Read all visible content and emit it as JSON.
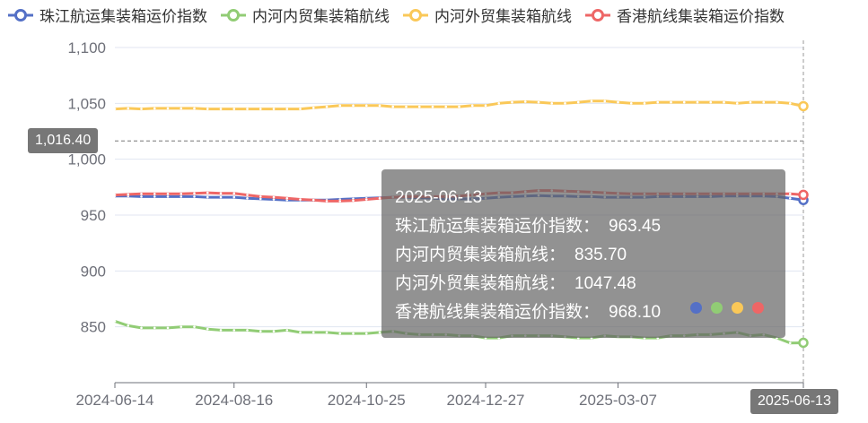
{
  "legend": [
    {
      "name": "珠江航运集装箱运价指数",
      "color": "#5470c6"
    },
    {
      "name": "内河内贸集装箱航线",
      "color": "#91cc75"
    },
    {
      "name": "内河外贸集装箱航线",
      "color": "#fac858"
    },
    {
      "name": "香港航线集装箱运价指数",
      "color": "#ee6666"
    }
  ],
  "axis_pointer": {
    "y_value": "1,016.40",
    "x_value": "2025-06-13"
  },
  "tooltip": {
    "date": "2025-06-13",
    "rows": [
      {
        "label": "珠江航运集装箱运价指数：",
        "value": "963.45"
      },
      {
        "label": "内河内贸集装箱航线：",
        "value": "835.70"
      },
      {
        "label": "内河外贸集装箱航线：",
        "value": "1047.48"
      },
      {
        "label": "香港航线集装箱运价指数：",
        "value": "968.10"
      }
    ]
  },
  "chart_data": {
    "type": "line",
    "x_ticks": [
      "2024-06-14",
      "2024-08-16",
      "2024-10-25",
      "2024-12-27",
      "2025-03-07",
      "2025-06-13"
    ],
    "y_ticks": [
      "850",
      "900",
      "950",
      "1,000",
      "1,050",
      "1,100"
    ],
    "ylim": [
      800,
      1100
    ],
    "x": [
      "2024-06-14",
      "2024-06-21",
      "2024-06-28",
      "2024-07-05",
      "2024-07-12",
      "2024-07-19",
      "2024-07-26",
      "2024-08-02",
      "2024-08-09",
      "2024-08-16",
      "2024-08-23",
      "2024-08-30",
      "2024-09-06",
      "2024-09-13",
      "2024-09-20",
      "2024-09-27",
      "2024-10-04",
      "2024-10-11",
      "2024-10-18",
      "2024-10-25",
      "2024-11-01",
      "2024-11-08",
      "2024-11-15",
      "2024-11-22",
      "2024-11-29",
      "2024-12-06",
      "2024-12-13",
      "2024-12-20",
      "2024-12-27",
      "2025-01-03",
      "2025-01-10",
      "2025-01-17",
      "2025-01-24",
      "2025-01-31",
      "2025-02-07",
      "2025-02-14",
      "2025-02-21",
      "2025-02-28",
      "2025-03-07",
      "2025-03-14",
      "2025-03-21",
      "2025-03-28",
      "2025-04-04",
      "2025-04-11",
      "2025-04-18",
      "2025-04-25",
      "2025-05-02",
      "2025-05-09",
      "2025-05-16",
      "2025-05-23",
      "2025-05-30",
      "2025-06-06",
      "2025-06-13"
    ],
    "series": [
      {
        "name": "珠江航运集装箱运价指数",
        "color": "#5470c6",
        "values": [
          967,
          967,
          966.5,
          966.5,
          966.5,
          966.5,
          966.5,
          966,
          966,
          966,
          965,
          964.5,
          964,
          963.5,
          963.5,
          963.5,
          963.5,
          964,
          964.5,
          965,
          965.5,
          966,
          966,
          965.5,
          965,
          964.5,
          964.5,
          964.5,
          965,
          966,
          966.5,
          967,
          967.5,
          967,
          967,
          966.5,
          966.5,
          966,
          966,
          966,
          966,
          966.5,
          966.5,
          966.5,
          966.5,
          966.5,
          967,
          967,
          967,
          967,
          966.5,
          965,
          963.45
        ]
      },
      {
        "name": "内河内贸集装箱航线",
        "color": "#91cc75",
        "values": [
          855,
          851,
          849,
          849,
          849,
          850,
          850,
          848,
          847,
          847,
          847,
          846,
          846,
          847,
          845,
          845,
          845,
          844,
          844,
          844,
          845,
          846,
          844,
          843,
          843,
          843,
          842,
          842,
          840,
          840,
          842,
          842,
          842,
          842,
          841,
          840,
          840,
          842,
          841,
          841,
          840,
          840,
          842,
          842,
          843,
          843,
          844,
          845,
          842,
          843,
          840,
          835.5,
          835.7
        ]
      },
      {
        "name": "内河外贸集装箱航线",
        "color": "#fac858",
        "values": [
          1045,
          1045.5,
          1045,
          1045.5,
          1045.5,
          1045.5,
          1045.5,
          1045,
          1045,
          1045,
          1045,
          1045,
          1045,
          1045,
          1045,
          1046,
          1047,
          1048,
          1048,
          1048,
          1048,
          1047,
          1047,
          1047,
          1047,
          1047,
          1047,
          1048,
          1048,
          1050,
          1051,
          1051.5,
          1051,
          1050,
          1050,
          1051,
          1052,
          1052,
          1051,
          1050,
          1050,
          1051,
          1051,
          1051,
          1051,
          1051,
          1051,
          1050,
          1051,
          1051,
          1051,
          1050,
          1047.48
        ]
      },
      {
        "name": "香港航线集装箱运价指数",
        "color": "#ee6666",
        "values": [
          968,
          968.5,
          969,
          969,
          969,
          969,
          969.5,
          970,
          969.5,
          969.5,
          968,
          966.5,
          966,
          965,
          964,
          963.5,
          962.5,
          962.5,
          963,
          964,
          965,
          966,
          966.5,
          966.5,
          966.5,
          966.5,
          967,
          968,
          969,
          970,
          970,
          971,
          972,
          972,
          971.5,
          971,
          970.5,
          970,
          969.5,
          969,
          969,
          969,
          969,
          969,
          969,
          969,
          969,
          969,
          969,
          969,
          969,
          969,
          968.1
        ]
      }
    ]
  }
}
